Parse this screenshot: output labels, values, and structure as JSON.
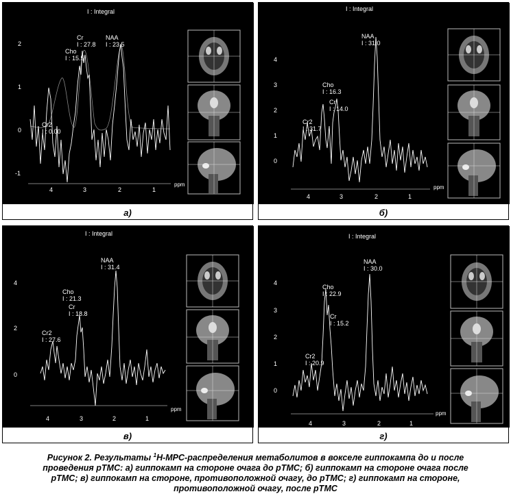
{
  "panels": [
    {
      "id": "a",
      "label": "а)",
      "header": "I : Integral",
      "y_ticks": [
        "2",
        "1",
        "0",
        "-1"
      ],
      "x_ticks": [
        "4",
        "3",
        "2",
        "1"
      ],
      "x_unit": "ppm",
      "peaks": [
        {
          "name": "Cr2",
          "value": "I : 0.00"
        },
        {
          "name": "Cho",
          "value": "I : 15.5"
        },
        {
          "name": "Cr",
          "value": "I : 27.8"
        },
        {
          "name": "NAA",
          "value": "I : 23.5"
        }
      ]
    },
    {
      "id": "b",
      "label": "б)",
      "header": "I : Integral",
      "y_ticks": [
        "4",
        "3",
        "2",
        "1",
        "0"
      ],
      "x_ticks": [
        "4",
        "3",
        "2",
        "1"
      ],
      "x_unit": "ppm",
      "peaks": [
        {
          "name": "Cr2",
          "value": "I : 31.7"
        },
        {
          "name": "Cho",
          "value": "I : 16.3"
        },
        {
          "name": "Cr",
          "value": "I : 14.0"
        },
        {
          "name": "NAA",
          "value": "I : 31.0"
        }
      ]
    },
    {
      "id": "v",
      "label": "в)",
      "header": "I : Integral",
      "y_ticks": [
        "4",
        "2",
        "0"
      ],
      "x_ticks": [
        "4",
        "3",
        "2",
        "1"
      ],
      "x_unit": "ppm",
      "peaks": [
        {
          "name": "Cr2",
          "value": "I : 27.6"
        },
        {
          "name": "Cho",
          "value": "I : 21.3"
        },
        {
          "name": "Cr",
          "value": "I : 18.8"
        },
        {
          "name": "NAA",
          "value": "I : 31.4"
        }
      ]
    },
    {
      "id": "g",
      "label": "г)",
      "header": "I : Integral",
      "y_ticks": [
        "4",
        "3",
        "2",
        "1",
        "0"
      ],
      "x_ticks": [
        "4",
        "3",
        "2",
        "1"
      ],
      "x_unit": "ppm",
      "peaks": [
        {
          "name": "Cr2",
          "value": "I : 20.9"
        },
        {
          "name": "Cho",
          "value": "I : 22.9"
        },
        {
          "name": "Cr",
          "value": "I : 15.2"
        },
        {
          "name": "NAA",
          "value": "I : 30.0"
        }
      ]
    }
  ],
  "caption": {
    "line1_pre": "Рисунок 2. Результаты ",
    "line1_sup": "1",
    "line1_post": "Н-МРС-распределения метаболитов в вокселе гиппокампа до и после",
    "line2": "проведения рТМС: а) гиппокамп на стороне очага до рТМС; б) гиппокамп на стороне очага после",
    "line3": "рТМС; в) гиппокамп на стороне, противоположной очагу, до рТМС; г) гиппокамп на стороне,",
    "line4": "противоположной очагу, после рТМС"
  }
}
